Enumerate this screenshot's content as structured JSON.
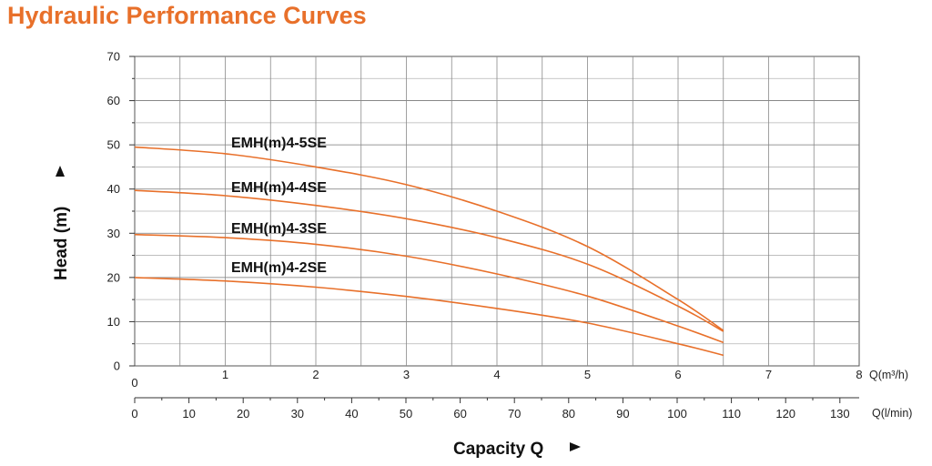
{
  "page": {
    "title": "Hydraulic Performance Curves"
  },
  "colors": {
    "curve": "#e8702a",
    "title": "#e8702a",
    "grid": "#8a8a8a"
  },
  "chart_data": {
    "type": "line",
    "title": "Hydraulic Performance Curves",
    "ylabel": "Head (m)",
    "xlabel": "Capacity Q",
    "ylim": [
      0,
      70
    ],
    "yticks": [
      0,
      10,
      20,
      30,
      40,
      50,
      60,
      70
    ],
    "x_primary": {
      "unit": "Q(m³/h)",
      "lim": [
        0,
        8
      ],
      "ticks": [
        0,
        1,
        2,
        3,
        4,
        5,
        6,
        7,
        8
      ]
    },
    "x_secondary": {
      "unit": "Q(l/min)",
      "ticks": [
        0,
        10,
        20,
        30,
        40,
        50,
        60,
        70,
        80,
        90,
        100,
        110,
        120,
        130
      ]
    },
    "grid": true,
    "series": [
      {
        "name": "EMH(m)4-5SE",
        "x": [
          0,
          1,
          2,
          3,
          4,
          5,
          6,
          6.5
        ],
        "y": [
          49.5,
          48,
          45,
          41,
          35,
          27,
          15,
          8
        ]
      },
      {
        "name": "EMH(m)4-4SE",
        "x": [
          0,
          1,
          2,
          3,
          4,
          5,
          6,
          6.5
        ],
        "y": [
          39.7,
          38.5,
          36.3,
          33.3,
          29,
          23,
          13.5,
          7.8
        ]
      },
      {
        "name": "EMH(m)4-3SE",
        "x": [
          0,
          1,
          2,
          3,
          4,
          5,
          6,
          6.5
        ],
        "y": [
          29.7,
          29,
          27.5,
          24.8,
          20.8,
          15.8,
          9,
          5.3
        ]
      },
      {
        "name": "EMH(m)4-2SE",
        "x": [
          0,
          1,
          2,
          3,
          4,
          5,
          6,
          6.5
        ],
        "y": [
          20,
          19.2,
          17.8,
          15.7,
          13,
          9.7,
          5,
          2.4
        ]
      }
    ]
  }
}
